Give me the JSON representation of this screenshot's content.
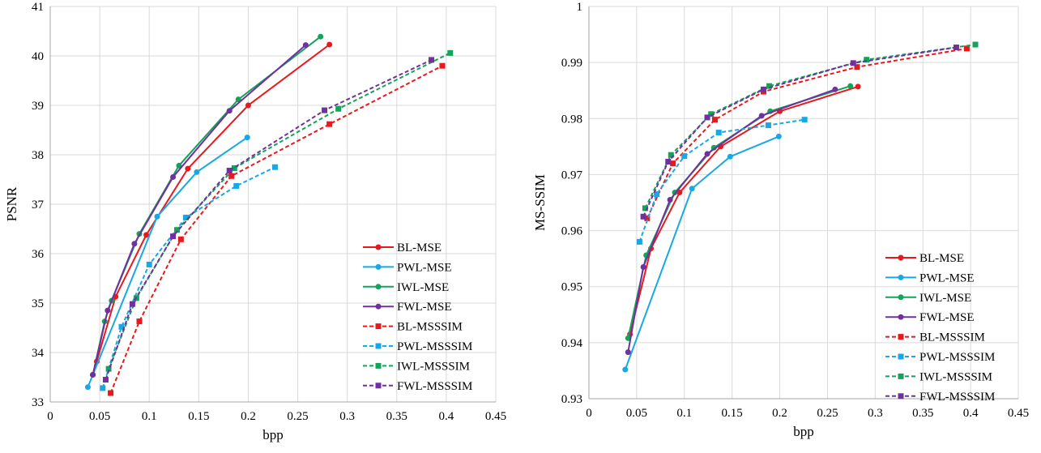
{
  "chart_data": [
    {
      "type": "line",
      "xlabel": "bpp",
      "ylabel": "PSNR",
      "xlim": [
        0,
        0.45
      ],
      "ylim": [
        33,
        41
      ],
      "xticks": [
        0,
        0.05,
        0.1,
        0.15,
        0.2,
        0.25,
        0.3,
        0.35,
        0.4,
        0.45
      ],
      "xtick_labels": [
        "0",
        "0.05",
        "0.1",
        "0.15",
        "0.2",
        "0.25",
        "0.3",
        "0.35",
        "0.4",
        "0.45"
      ],
      "yticks": [
        33,
        34,
        35,
        36,
        37,
        38,
        39,
        40,
        41
      ],
      "ytick_labels": [
        "33",
        "34",
        "35",
        "36",
        "37",
        "38",
        "39",
        "40",
        "41"
      ],
      "grid": true,
      "legend_position": "lower-right",
      "series": [
        {
          "name": "BL-MSE",
          "color": "#e8191d",
          "dash": "solid",
          "marker": "circle",
          "x": [
            0.043,
            0.047,
            0.066,
            0.097,
            0.139,
            0.2,
            0.282
          ],
          "y": [
            33.55,
            33.82,
            35.13,
            36.38,
            37.72,
            39.0,
            40.23
          ]
        },
        {
          "name": "PWL-MSE",
          "color": "#18a8e6",
          "dash": "solid",
          "marker": "circle",
          "x": [
            0.038,
            0.108,
            0.148,
            0.199
          ],
          "y": [
            33.3,
            36.75,
            37.65,
            38.35
          ]
        },
        {
          "name": "IWL-MSE",
          "color": "#13a35a",
          "dash": "solid",
          "marker": "circle",
          "x": [
            0.043,
            0.055,
            0.062,
            0.09,
            0.13,
            0.19,
            0.273
          ],
          "y": [
            33.55,
            34.63,
            35.05,
            36.4,
            37.78,
            39.12,
            40.39
          ]
        },
        {
          "name": "FWL-MSE",
          "color": "#7030a0",
          "dash": "solid",
          "marker": "circle",
          "x": [
            0.043,
            0.058,
            0.085,
            0.124,
            0.181,
            0.258
          ],
          "y": [
            33.55,
            34.85,
            36.2,
            37.55,
            38.89,
            40.22
          ]
        },
        {
          "name": "BL-MSSSIM",
          "color": "#e8191d",
          "dash": "dashed",
          "marker": "square",
          "x": [
            0.061,
            0.09,
            0.132,
            0.183,
            0.282,
            0.396
          ],
          "y": [
            33.18,
            34.63,
            36.29,
            37.57,
            38.62,
            39.8
          ]
        },
        {
          "name": "PWL-MSSSIM",
          "color": "#18a8e6",
          "dash": "dashed",
          "marker": "square",
          "x": [
            0.053,
            0.072,
            0.1,
            0.137,
            0.188,
            0.227
          ],
          "y": [
            33.28,
            34.52,
            35.78,
            36.73,
            37.37,
            37.75
          ]
        },
        {
          "name": "IWL-MSSSIM",
          "color": "#13a35a",
          "dash": "dashed",
          "marker": "square",
          "x": [
            0.059,
            0.087,
            0.128,
            0.186,
            0.291,
            0.404
          ],
          "y": [
            33.67,
            35.1,
            36.48,
            37.73,
            38.93,
            40.06
          ]
        },
        {
          "name": "FWL-MSSSIM",
          "color": "#7030a0",
          "dash": "dashed",
          "marker": "square",
          "x": [
            0.056,
            0.083,
            0.124,
            0.181,
            0.277,
            0.385
          ],
          "y": [
            33.45,
            34.98,
            36.35,
            37.68,
            38.9,
            39.92
          ]
        }
      ]
    },
    {
      "type": "line",
      "xlabel": "bpp",
      "ylabel": "MS-SSIM",
      "xlim": [
        0,
        0.45
      ],
      "ylim": [
        0.93,
        1.0
      ],
      "xticks": [
        0,
        0.05,
        0.1,
        0.15,
        0.2,
        0.25,
        0.3,
        0.35,
        0.4,
        0.45
      ],
      "xtick_labels": [
        "0",
        "0.05",
        "0.1",
        "0.15",
        "0.2",
        "0.25",
        "0.3",
        "0.35",
        "0.4",
        "0.45"
      ],
      "yticks": [
        0.93,
        0.94,
        0.95,
        0.96,
        0.97,
        0.98,
        0.99,
        1.0
      ],
      "ytick_labels": [
        "0.93",
        "0.94",
        "0.95",
        "0.96",
        "0.97",
        "0.98",
        "0.99",
        "1"
      ],
      "grid": true,
      "legend_position": "lower-right",
      "series": [
        {
          "name": "BL-MSE",
          "color": "#e8191d",
          "dash": "solid",
          "marker": "circle",
          "x": [
            0.043,
            0.065,
            0.095,
            0.138,
            0.2,
            0.282
          ],
          "y": [
            0.9415,
            0.9568,
            0.9668,
            0.975,
            0.9813,
            0.9857
          ]
        },
        {
          "name": "PWL-MSE",
          "color": "#18a8e6",
          "dash": "solid",
          "marker": "circle",
          "x": [
            0.038,
            0.108,
            0.148,
            0.199
          ],
          "y": [
            0.9352,
            0.9675,
            0.9732,
            0.9768
          ]
        },
        {
          "name": "IWL-MSE",
          "color": "#13a35a",
          "dash": "solid",
          "marker": "circle",
          "x": [
            0.041,
            0.06,
            0.09,
            0.131,
            0.19,
            0.274
          ],
          "y": [
            0.9408,
            0.9556,
            0.9668,
            0.9748,
            0.9813,
            0.9858
          ]
        },
        {
          "name": "FWL-MSE",
          "color": "#7030a0",
          "dash": "solid",
          "marker": "circle",
          "x": [
            0.041,
            0.057,
            0.085,
            0.124,
            0.181,
            0.258
          ],
          "y": [
            0.9383,
            0.9535,
            0.9655,
            0.9737,
            0.9805,
            0.9852
          ]
        },
        {
          "name": "BL-MSSSIM",
          "color": "#e8191d",
          "dash": "dashed",
          "marker": "square",
          "x": [
            0.061,
            0.088,
            0.132,
            0.183,
            0.281,
            0.396
          ],
          "y": [
            0.9622,
            0.972,
            0.9798,
            0.9848,
            0.9892,
            0.9925
          ]
        },
        {
          "name": "PWL-MSSSIM",
          "color": "#18a8e6",
          "dash": "dashed",
          "marker": "square",
          "x": [
            0.053,
            0.071,
            0.1,
            0.136,
            0.188,
            0.226
          ],
          "y": [
            0.958,
            0.9665,
            0.9733,
            0.9775,
            0.9788,
            0.9798
          ]
        },
        {
          "name": "IWL-MSSSIM",
          "color": "#13a35a",
          "dash": "dashed",
          "marker": "square",
          "x": [
            0.059,
            0.086,
            0.128,
            0.189,
            0.291,
            0.405
          ],
          "y": [
            0.964,
            0.9735,
            0.9808,
            0.9858,
            0.9905,
            0.9932
          ]
        },
        {
          "name": "FWL-MSSSIM",
          "color": "#7030a0",
          "dash": "dashed",
          "marker": "square",
          "x": [
            0.057,
            0.083,
            0.124,
            0.183,
            0.277,
            0.385
          ],
          "y": [
            0.9625,
            0.9723,
            0.9802,
            0.9852,
            0.9899,
            0.9927
          ]
        }
      ]
    }
  ]
}
